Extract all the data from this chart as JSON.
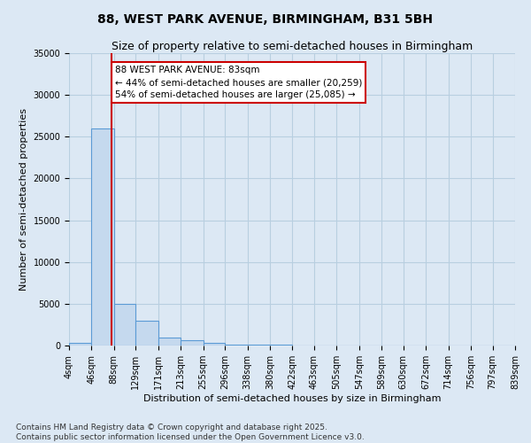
{
  "title": "88, WEST PARK AVENUE, BIRMINGHAM, B31 5BH",
  "subtitle": "Size of property relative to semi-detached houses in Birmingham",
  "xlabel": "Distribution of semi-detached houses by size in Birmingham",
  "ylabel": "Number of semi-detached properties",
  "bin_edges": [
    4,
    46,
    88,
    129,
    171,
    213,
    255,
    296,
    338,
    380,
    422,
    463,
    505,
    547,
    589,
    630,
    672,
    714,
    756,
    797,
    839
  ],
  "bar_heights": [
    300,
    26000,
    5000,
    3000,
    1000,
    600,
    300,
    150,
    100,
    80,
    50,
    40,
    30,
    20,
    15,
    10,
    8,
    5,
    4,
    3
  ],
  "bar_color": "#c5d9ee",
  "bar_edge_color": "#5b9bd5",
  "property_size": 83,
  "property_label": "88 WEST PARK AVENUE: 83sqm",
  "pct_smaller": 44,
  "n_smaller": 20259,
  "pct_larger": 54,
  "n_larger": 25085,
  "annotation_box_color": "#ffffff",
  "annotation_box_edge_color": "#cc0000",
  "vline_color": "#cc0000",
  "ylim": [
    0,
    35000
  ],
  "yticks": [
    0,
    5000,
    10000,
    15000,
    20000,
    25000,
    30000,
    35000
  ],
  "grid_color": "#b8cfe0",
  "background_color": "#dce8f4",
  "footer_text": "Contains HM Land Registry data © Crown copyright and database right 2025.\nContains public sector information licensed under the Open Government Licence v3.0.",
  "title_fontsize": 10,
  "subtitle_fontsize": 9,
  "axis_label_fontsize": 8,
  "tick_fontsize": 7,
  "annotation_fontsize": 7.5,
  "footer_fontsize": 6.5
}
